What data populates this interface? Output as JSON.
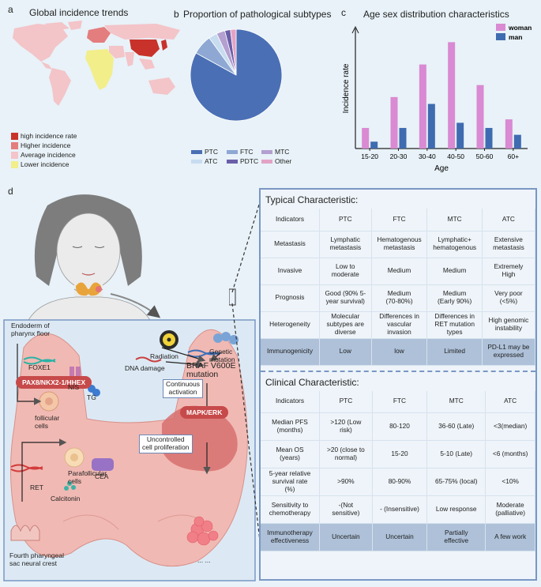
{
  "panel_a": {
    "letter": "a",
    "title": "Global incidence trends",
    "legend": [
      {
        "label": "high incidence rate",
        "color": "#c8322a"
      },
      {
        "label": "Higher incidence",
        "color": "#e47d7d"
      },
      {
        "label": "Average incidence",
        "color": "#f3c4c8"
      },
      {
        "label": "Lower incidence",
        "color": "#f2ee8a"
      }
    ]
  },
  "panel_b": {
    "letter": "b",
    "title": "Proportion of pathological subtypes"
  },
  "panel_c": {
    "letter": "c",
    "title": "Age sex distribution characteristics",
    "ylabel": "Incidence rate",
    "xlabel": "Age"
  },
  "chart_data": [
    {
      "type": "pie",
      "title": "Proportion of pathological subtypes",
      "series": [
        {
          "name": "PTC",
          "value": 83,
          "color": "#4a6fb5"
        },
        {
          "name": "FTC",
          "value": 7,
          "color": "#8ea8d3"
        },
        {
          "name": "ATC",
          "value": 3,
          "color": "#c7dcef"
        },
        {
          "name": "MTC",
          "value": 3,
          "color": "#b39fd0"
        },
        {
          "name": "PDTC",
          "value": 2,
          "color": "#6b5fa8"
        },
        {
          "name": "Other",
          "value": 2,
          "color": "#e3a3c6"
        }
      ],
      "legend_placement": "bottom"
    },
    {
      "type": "bar",
      "title": "Age sex distribution characteristics",
      "categories": [
        "15-20",
        "20-30",
        "30-40",
        "40-50",
        "50-60",
        "60+"
      ],
      "series": [
        {
          "name": "woman",
          "color": "#d98ad2",
          "values": [
            1.2,
            3.0,
            4.9,
            6.2,
            3.7,
            1.7
          ]
        },
        {
          "name": "man",
          "color": "#3f6bb0",
          "values": [
            0.4,
            1.2,
            2.6,
            1.5,
            1.2,
            0.8
          ]
        }
      ],
      "xlabel": "Age",
      "ylabel": "Incidence rate",
      "ylim": [
        0,
        7
      ],
      "legend_placement": "top-right"
    }
  ],
  "panel_d": {
    "letter": "d",
    "diagram": {
      "endoderm": "Endoderm of\npharynx floor",
      "foxe1": "FOXE1",
      "pax8": "PAX8/NKX2-1/HHEX",
      "follicular": "follicular\ncells",
      "nis": "NIS",
      "tg": "TG",
      "parafollicular": "Parafollicular\ncells",
      "ret": "RET",
      "calcitonin": "Calcitonin",
      "cea": "CEA",
      "fourth": "Fourth pharyngeal\nsac neural crest",
      "radiation": "Radiation",
      "genetic": "Genetic\nmutation",
      "dna": "DNA damage",
      "braf": "BRAF V600E\nmutation",
      "continuous": "Continuous\nactivation",
      "mapk": "MAPK/ERK",
      "uncontrolled": "Uncontrolled\ncell proliferation",
      "dots": "... ..."
    },
    "typical": {
      "title": "Typical Characteristic:",
      "header": [
        "Indicators",
        "PTC",
        "FTC",
        "MTC",
        "ATC"
      ],
      "rows": [
        [
          "Metastasis",
          "Lymphatic\nmetastasis",
          "Hematogenous\nmetastasis",
          "Lymphatic+\nhematogenous",
          "Extensive\nmetastasis"
        ],
        [
          "Invasive",
          "Low to\nmoderate",
          "Medium",
          "Medium",
          "Extremely\nHigh"
        ],
        [
          "Prognosis",
          "Good (90% 5-\nyear survival)",
          "Medium\n(70-80%)",
          "Medium\n(Early 90%)",
          "Very poor\n(<5%)"
        ],
        [
          "Heterogeneity",
          "Molecular\nsubtypes are\ndiverse",
          "Differences in\nvascular\ninvasion",
          "Differences in\nRET mutation\ntypes",
          "High genomic\ninstability"
        ],
        [
          "Immunogenicity",
          "Low",
          "low",
          "Limited",
          "PD-L1 may be\nexpressed"
        ]
      ]
    },
    "clinical": {
      "title": "Clinical Characteristic:",
      "header": [
        "Indicators",
        "PTC",
        "FTC",
        "MTC",
        "ATC"
      ],
      "rows": [
        [
          "Median PFS\n(months)",
          ">120 (Low\nrisk)",
          "80-120",
          "36-60 (Late)",
          "<3(median)"
        ],
        [
          "Mean OS\n(years)",
          ">20 (close to\nnormal)",
          "15-20",
          "5-10 (Late)",
          "<6 (months)"
        ],
        [
          "5-year relative\nsurvival rate\n(%)",
          ">90%",
          "80-90%",
          "65-75% (local)",
          "<10%"
        ],
        [
          "Sensitivity to\nchemotherapy",
          "-(Not\nsensitive)",
          "- (Insensitive)",
          "Low response",
          "Moderate\n(palliative)"
        ],
        [
          "Immunotherapy\neffectiveness",
          "Uncertain",
          "Uncertain",
          "Partially\neffective",
          "A few work"
        ]
      ]
    }
  }
}
